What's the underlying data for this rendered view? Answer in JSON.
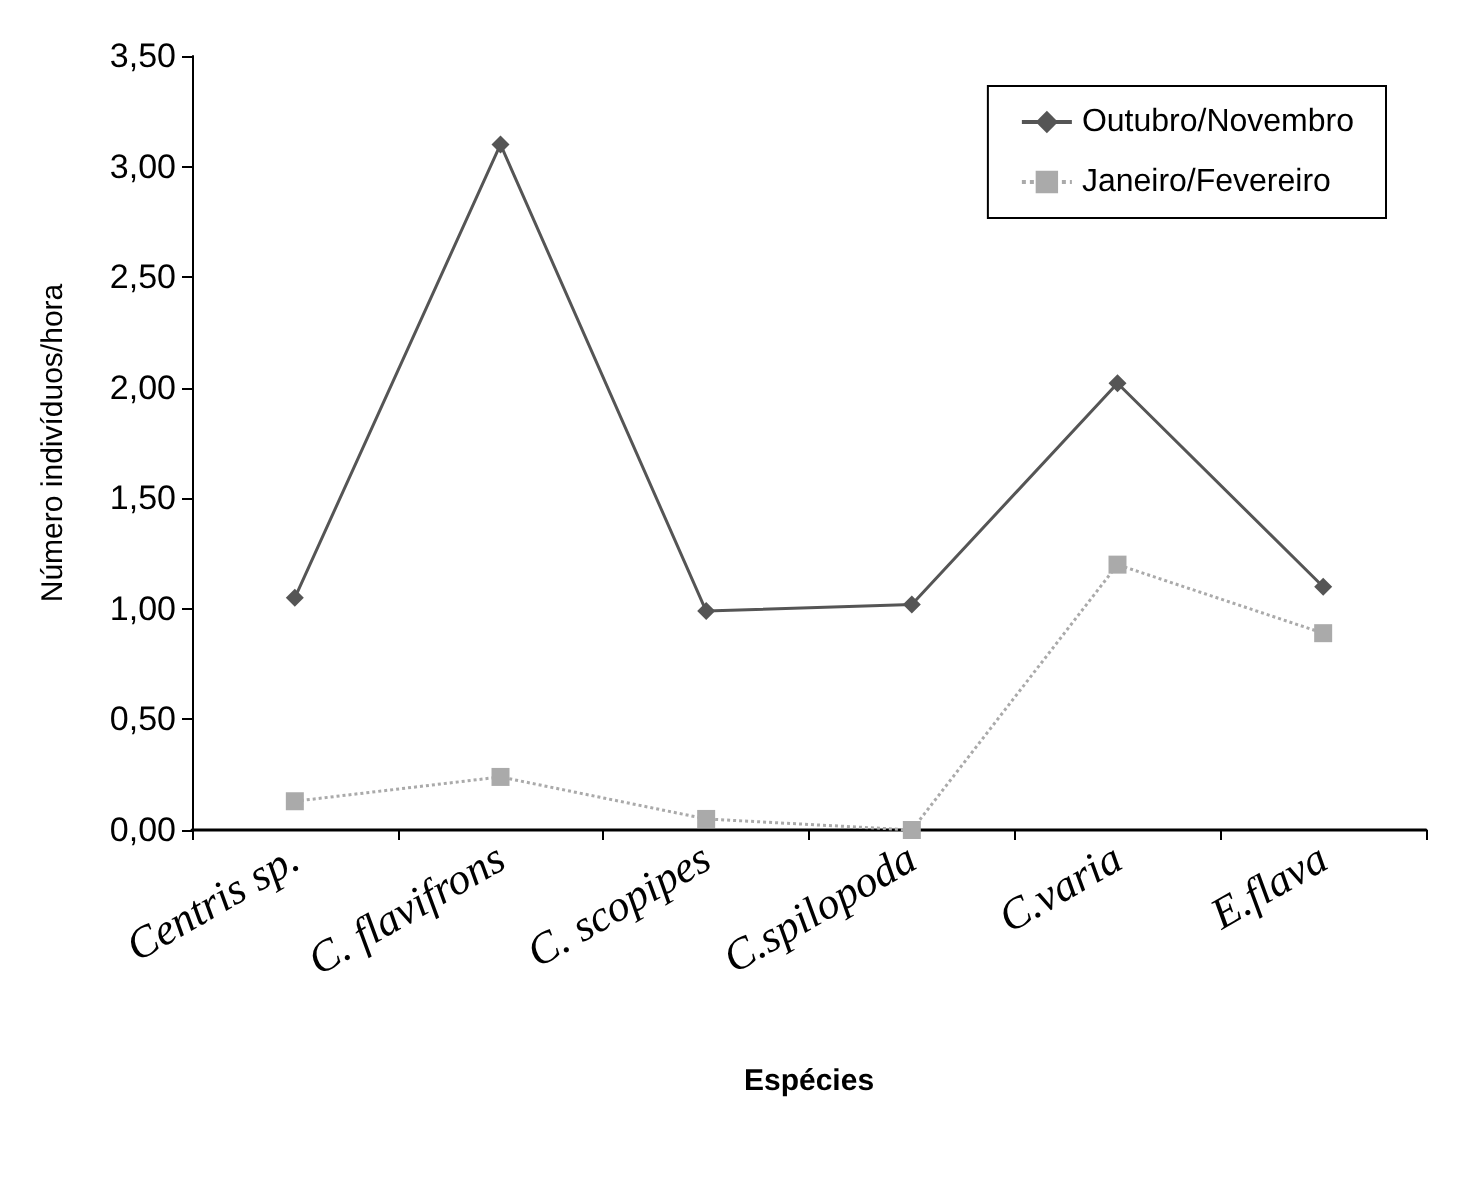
{
  "chart_data": {
    "type": "line",
    "xlabel": "Espécies",
    "ylabel": "Número indivíduos/hora",
    "categories": [
      "Centris sp.",
      "C. flavifrons",
      "C. scopipes",
      "C.spilopoda",
      "C.varia",
      "E.flava"
    ],
    "series": [
      {
        "name": "Outubro/Novembro",
        "color": "#555555",
        "marker": "diamond",
        "line_style": "solid",
        "values": [
          1.05,
          3.1,
          0.99,
          1.02,
          2.02,
          1.1
        ]
      },
      {
        "name": "Janeiro/Fevereiro",
        "color": "#aaaaaa",
        "marker": "square",
        "line_style": "dotted",
        "values": [
          0.13,
          0.24,
          0.05,
          0.0,
          1.2,
          0.89
        ]
      }
    ],
    "ylim": [
      0,
      3.5
    ],
    "yticks": [
      {
        "value": 0,
        "label": "0,00"
      },
      {
        "value": 0.5,
        "label": "0,50"
      },
      {
        "value": 1,
        "label": "1,00"
      },
      {
        "value": 1.5,
        "label": "1,50"
      },
      {
        "value": 2,
        "label": "2,00"
      },
      {
        "value": 2.5,
        "label": "2,50"
      },
      {
        "value": 3,
        "label": "3,00"
      },
      {
        "value": 3.5,
        "label": "3,50"
      }
    ],
    "grid": false,
    "legend": "top right"
  }
}
